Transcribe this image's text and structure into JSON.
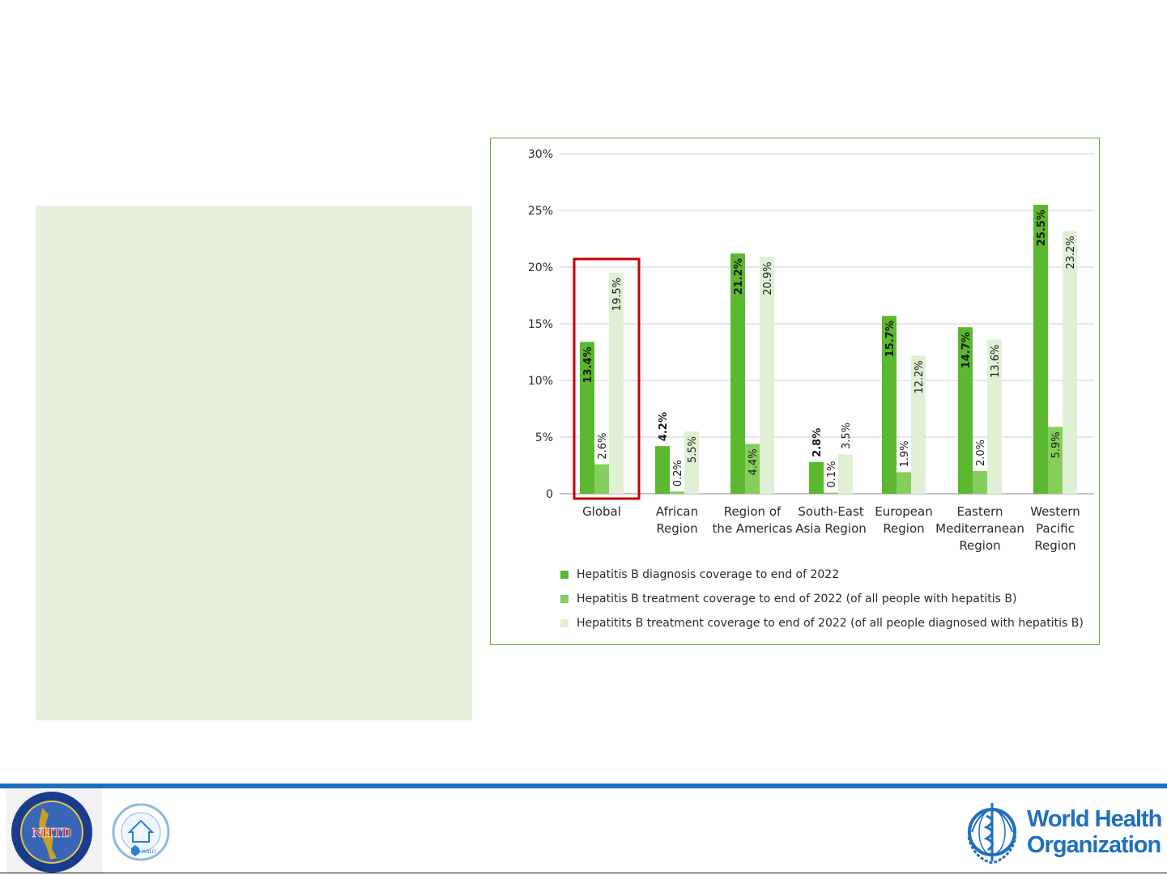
{
  "chart_data": {
    "type": "bar",
    "categories": [
      [
        "Global"
      ],
      [
        "African",
        "Region"
      ],
      [
        "Region of",
        "the Americas"
      ],
      [
        "South-East",
        "Asia Region"
      ],
      [
        "European",
        "Region"
      ],
      [
        "Eastern",
        "Mediterranean",
        "Region"
      ],
      [
        "Western",
        "Pacific",
        "Region"
      ]
    ],
    "series": [
      {
        "name": "Hepatitis B diagnosis coverage to end of 2022",
        "color": "#5cb82e",
        "values": [
          13.4,
          4.2,
          21.2,
          2.8,
          15.7,
          14.7,
          25.5
        ],
        "labels": [
          "13.4%",
          "4.2%",
          "21.2%",
          "2.8%",
          "15.7%",
          "14.7%",
          "25.5%"
        ]
      },
      {
        "name": "Hepatitis B treatment coverage to end of 2022 (of all people with hepatitis B)",
        "color": "#86ce5c",
        "values": [
          2.6,
          0.2,
          4.4,
          0.1,
          1.9,
          2.0,
          5.9
        ],
        "labels": [
          "2.6%",
          "0.2%",
          "4.4%",
          "0.1%",
          "1.9%",
          "2.0%",
          "5.9%"
        ]
      },
      {
        "name": "Hepatitits B treatment coverage to end of 2022 (of all people diagnosed with hepatitis B)",
        "color": "#e0f0d4",
        "values": [
          19.5,
          5.5,
          20.9,
          3.5,
          12.2,
          13.6,
          23.2
        ],
        "labels": [
          "19.5%",
          "5.5%",
          "20.9%",
          "3.5%",
          "12.2%",
          "13.6%",
          "23.2%"
        ]
      }
    ],
    "ylim": [
      0,
      30
    ],
    "yticks": [
      0,
      5,
      10,
      15,
      20,
      25,
      30
    ],
    "ytick_labels": [
      "0",
      "5%",
      "10%",
      "15%",
      "20%",
      "25%",
      "30%"
    ],
    "grid": true,
    "legend_position": "bottom-left",
    "highlight": {
      "category_index": 0,
      "color": "#c00000"
    }
  },
  "footer": {
    "logo_left_1": "NHTD",
    "logo_left_2": "HABLD",
    "who_line1": "World Health",
    "who_line2": "Organization",
    "accent_color": "#1f6fbf"
  }
}
